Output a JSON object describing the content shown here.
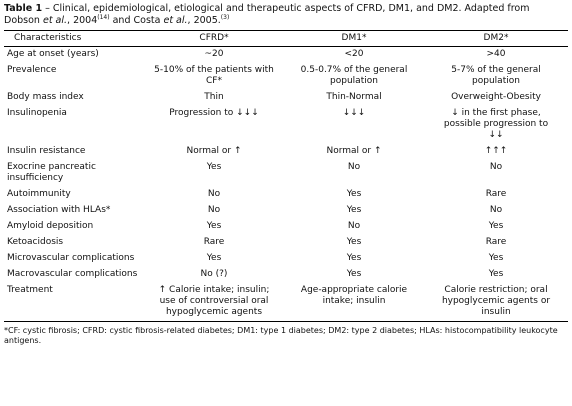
{
  "caption": {
    "label": "Table 1",
    "parts": [
      " – Clinical, epidemiological, etiological and therapeutic aspects of CFRD, DM1, and DM2. Adapted from Dobson ",
      "et al.",
      ", 2004",
      "(14)",
      " and Costa ",
      "et al.",
      ", 2005.",
      "(3)"
    ]
  },
  "table": {
    "headers": [
      "Characteristics",
      "CFRD*",
      "DM1*",
      "DM2*"
    ],
    "rows": [
      [
        "Age at onset (years)",
        "~20",
        "<20",
        ">40"
      ],
      [
        "Prevalence",
        "5-10% of the patients with CF*",
        "0.5-0.7% of the general population",
        "5-7% of the general population"
      ],
      [
        "Body mass index",
        "Thin",
        "Thin-Normal",
        "Overweight-Obesity"
      ],
      [
        "Insulinopenia",
        "Progression to ↓↓↓",
        "↓↓↓",
        "↓ in the first phase, possible progression to ↓↓"
      ],
      [
        "Insulin resistance",
        "Normal or ↑",
        "Normal or ↑",
        "↑↑↑"
      ],
      [
        "Exocrine pancreatic insufficiency",
        "Yes",
        "No",
        "No"
      ],
      [
        "Autoimmunity",
        "No",
        "Yes",
        "Rare"
      ],
      [
        "Association with HLAs*",
        "No",
        "Yes",
        "No"
      ],
      [
        "Amyloid deposition",
        "Yes",
        "No",
        "Yes"
      ],
      [
        "Ketoacidosis",
        "Rare",
        "Yes",
        "Rare"
      ],
      [
        "Microvascular complications",
        "Yes",
        "Yes",
        "Yes"
      ],
      [
        "Macrovascular complications",
        "No (?)",
        "Yes",
        "Yes"
      ],
      [
        "Treatment",
        "↑ Calorie intake; insulin; use of controversial oral hypoglycemic agents",
        "Age-appropriate calorie intake; insulin",
        "Calorie restriction; oral hypoglycemic agents or insulin"
      ]
    ]
  },
  "footnote": "*CF: cystic fibrosis; CFRD: cystic fibrosis-related diabetes; DM1: type 1 diabetes; DM2: type 2 diabetes; HLAs: histocompatibility leukocyte antigens."
}
